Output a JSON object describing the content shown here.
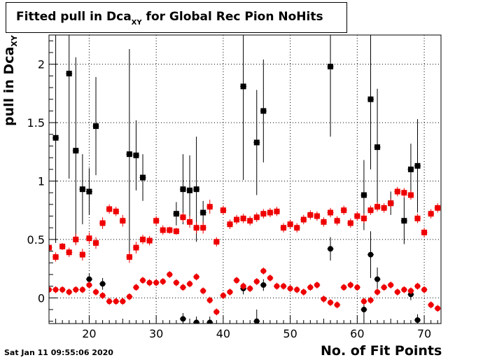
{
  "title": {
    "main": "Fitted pull in Dca",
    "sub": "XY",
    "rest": " for Global Rec Pion NoHits"
  },
  "timestamp": "Sat Jan 11 09:55:06 2020",
  "colors": {
    "black_series": "#000000",
    "red_series": "#ee0000",
    "grid": "#000000"
  },
  "chart_data": {
    "type": "scatter",
    "title": "Fitted pull in DcaXY for Global Rec Pion NoHits",
    "xlabel": "No. of Fit Points",
    "ylabel": "pull in DcaXY",
    "xlim": [
      14,
      72.5
    ],
    "ylim": [
      -0.22,
      2.25
    ],
    "grid": true,
    "legend": "none",
    "x_ticks": [
      20,
      30,
      40,
      50,
      60,
      70
    ],
    "x_tick_labels": [
      "20",
      "30",
      "40",
      "50",
      "60",
      "70"
    ],
    "y_ticks": [
      0,
      0.5,
      1,
      1.5,
      2
    ],
    "y_tick_labels": [
      "0",
      "0.5",
      "1",
      "1.5",
      "2"
    ],
    "series": [
      {
        "color": "#000000",
        "marker": "square",
        "points": [
          [
            15,
            1.37,
            0.9
          ],
          [
            17,
            1.92,
            0.9
          ],
          [
            18,
            1.26,
            0.8
          ],
          [
            19,
            0.93,
            0.3
          ],
          [
            20,
            0.91,
            0.2
          ],
          [
            21,
            1.47,
            0.42
          ],
          [
            26,
            1.23,
            0.9
          ],
          [
            27,
            1.22,
            0.3
          ],
          [
            28,
            1.03,
            0.2
          ],
          [
            33,
            0.72,
            0.1
          ],
          [
            34,
            0.93,
            0.3
          ],
          [
            35,
            0.92,
            0.3
          ],
          [
            36,
            0.93,
            0.45
          ],
          [
            37,
            0.73,
            0.1
          ],
          [
            43,
            1.81,
            0.8
          ],
          [
            45,
            1.33,
            0.45
          ],
          [
            46,
            1.6,
            0.44
          ],
          [
            56,
            1.98,
            0.6
          ],
          [
            61,
            0.88,
            0.3
          ],
          [
            62,
            1.7,
            0.6
          ],
          [
            63,
            1.29,
            0.5
          ],
          [
            65,
            0.81,
            0.1
          ],
          [
            67,
            0.66,
            0.2
          ],
          [
            68,
            1.1,
            0.22
          ],
          [
            69,
            1.13,
            0.4
          ]
        ]
      },
      {
        "color": "#000000",
        "marker": "circle",
        "points": [
          [
            20,
            0.16,
            0.05
          ],
          [
            22,
            0.12,
            0.05
          ],
          [
            34,
            -0.18,
            0.05
          ],
          [
            36,
            -0.21,
            0.05
          ],
          [
            38,
            -0.21,
            0.05
          ],
          [
            43,
            0.08,
            0.05
          ],
          [
            45,
            -0.2,
            0.1
          ],
          [
            46,
            0.11,
            0.05
          ],
          [
            56,
            0.42,
            0.1
          ],
          [
            61,
            -0.1,
            0.1
          ],
          [
            62,
            0.37,
            0.2
          ],
          [
            63,
            0.16,
            0.1
          ],
          [
            68,
            0.03,
            0.05
          ],
          [
            69,
            -0.19,
            0.05
          ]
        ]
      },
      {
        "color": "#ee0000",
        "marker": "square",
        "points": [
          [
            14,
            0.43,
            0.05
          ],
          [
            15,
            0.35,
            0.04
          ],
          [
            16,
            0.44,
            0.03
          ],
          [
            17,
            0.39,
            0.04
          ],
          [
            18,
            0.5,
            0.05
          ],
          [
            19,
            0.37,
            0.05
          ],
          [
            20,
            0.51,
            0.05
          ],
          [
            21,
            0.47,
            0.05
          ],
          [
            22,
            0.64,
            0.05
          ],
          [
            23,
            0.76,
            0.04
          ],
          [
            24,
            0.74,
            0.04
          ],
          [
            25,
            0.66,
            0.05
          ],
          [
            26,
            0.35,
            0.05
          ],
          [
            27,
            0.43,
            0.05
          ],
          [
            28,
            0.5,
            0.04
          ],
          [
            29,
            0.49,
            0.04
          ],
          [
            30,
            0.66,
            0.04
          ],
          [
            31,
            0.58,
            0.04
          ],
          [
            32,
            0.58,
            0.03
          ],
          [
            33,
            0.57,
            0.03
          ],
          [
            34,
            0.69,
            0.04
          ],
          [
            35,
            0.65,
            0.05
          ],
          [
            36,
            0.6,
            0.05
          ],
          [
            37,
            0.6,
            0.05
          ],
          [
            38,
            0.78,
            0.06
          ],
          [
            39,
            0.48,
            0.04
          ],
          [
            40,
            0.75,
            0.04
          ],
          [
            41,
            0.63,
            0.04
          ],
          [
            42,
            0.67,
            0.04
          ],
          [
            43,
            0.68,
            0.04
          ],
          [
            44,
            0.66,
            0.04
          ],
          [
            45,
            0.69,
            0.04
          ],
          [
            46,
            0.72,
            0.04
          ],
          [
            47,
            0.73,
            0.04
          ],
          [
            48,
            0.74,
            0.04
          ],
          [
            49,
            0.6,
            0.04
          ],
          [
            50,
            0.63,
            0.04
          ],
          [
            51,
            0.6,
            0.04
          ],
          [
            52,
            0.67,
            0.04
          ],
          [
            53,
            0.71,
            0.04
          ],
          [
            54,
            0.7,
            0.04
          ],
          [
            55,
            0.65,
            0.04
          ],
          [
            56,
            0.73,
            0.04
          ],
          [
            57,
            0.66,
            0.04
          ],
          [
            58,
            0.75,
            0.04
          ],
          [
            59,
            0.64,
            0.04
          ],
          [
            60,
            0.7,
            0.04
          ],
          [
            61,
            0.68,
            0.04
          ],
          [
            62,
            0.75,
            0.04
          ],
          [
            63,
            0.78,
            0.04
          ],
          [
            64,
            0.77,
            0.04
          ],
          [
            65,
            0.81,
            0.04
          ],
          [
            66,
            0.91,
            0.04
          ],
          [
            67,
            0.9,
            0.04
          ],
          [
            68,
            0.88,
            0.04
          ],
          [
            69,
            0.68,
            0.04
          ],
          [
            70,
            0.56,
            0.04
          ],
          [
            71,
            0.72,
            0.04
          ],
          [
            72,
            0.77,
            0.04
          ]
        ]
      },
      {
        "color": "#ee0000",
        "marker": "circle",
        "points": [
          [
            14,
            0.07,
            0.03
          ],
          [
            15,
            0.07,
            0.03
          ],
          [
            16,
            0.07,
            0.03
          ],
          [
            17,
            0.05,
            0.03
          ],
          [
            18,
            0.07,
            0.03
          ],
          [
            19,
            0.07,
            0.03
          ],
          [
            20,
            0.11,
            0.03
          ],
          [
            21,
            0.05,
            0.03
          ],
          [
            22,
            0.02,
            0.03
          ],
          [
            23,
            -0.03,
            0.03
          ],
          [
            24,
            -0.03,
            0.03
          ],
          [
            25,
            -0.03,
            0.03
          ],
          [
            26,
            0.01,
            0.03
          ],
          [
            27,
            0.09,
            0.03
          ],
          [
            28,
            0.15,
            0.03
          ],
          [
            29,
            0.13,
            0.03
          ],
          [
            30,
            0.13,
            0.03
          ],
          [
            31,
            0.14,
            0.03
          ],
          [
            32,
            0.2,
            0.03
          ],
          [
            33,
            0.13,
            0.03
          ],
          [
            34,
            0.09,
            0.03
          ],
          [
            35,
            0.12,
            0.03
          ],
          [
            36,
            0.18,
            0.03
          ],
          [
            37,
            0.06,
            0.03
          ],
          [
            38,
            -0.02,
            0.03
          ],
          [
            39,
            -0.12,
            0.03
          ],
          [
            40,
            0.02,
            0.03
          ],
          [
            41,
            0.05,
            0.03
          ],
          [
            42,
            0.15,
            0.03
          ],
          [
            43,
            0.1,
            0.03
          ],
          [
            44,
            0.08,
            0.03
          ],
          [
            45,
            0.14,
            0.03
          ],
          [
            46,
            0.23,
            0.03
          ],
          [
            47,
            0.17,
            0.03
          ],
          [
            48,
            0.1,
            0.03
          ],
          [
            49,
            0.1,
            0.03
          ],
          [
            50,
            0.08,
            0.03
          ],
          [
            51,
            0.07,
            0.03
          ],
          [
            52,
            0.05,
            0.03
          ],
          [
            53,
            0.09,
            0.03
          ],
          [
            54,
            0.11,
            0.03
          ],
          [
            55,
            -0.01,
            0.03
          ],
          [
            56,
            -0.04,
            0.03
          ],
          [
            57,
            -0.06,
            0.03
          ],
          [
            58,
            0.09,
            0.03
          ],
          [
            59,
            0.11,
            0.03
          ],
          [
            60,
            0.09,
            0.03
          ],
          [
            61,
            -0.03,
            0.03
          ],
          [
            62,
            -0.02,
            0.03
          ],
          [
            63,
            0.05,
            0.03
          ],
          [
            64,
            0.09,
            0.03
          ],
          [
            65,
            0.11,
            0.03
          ],
          [
            66,
            0.05,
            0.03
          ],
          [
            67,
            0.07,
            0.03
          ],
          [
            68,
            0.06,
            0.03
          ],
          [
            69,
            0.1,
            0.03
          ],
          [
            70,
            0.07,
            0.03
          ],
          [
            71,
            -0.06,
            0.03
          ],
          [
            72,
            -0.09,
            0.03
          ]
        ]
      }
    ]
  }
}
